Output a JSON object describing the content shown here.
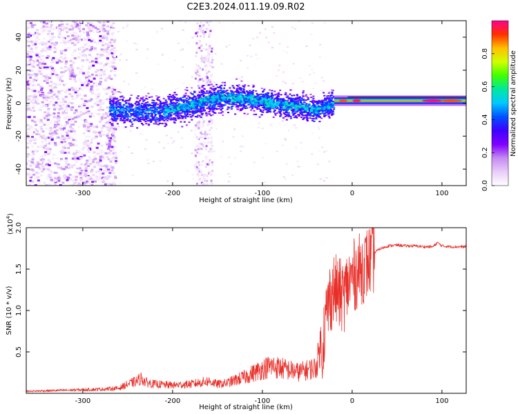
{
  "figure": {
    "title": "C2E3.2024.011.19.09.R02"
  },
  "chart_data": [
    {
      "type": "heatmap",
      "xlabel": "Height of straight line (km)",
      "ylabel": "Frequency (Hz)",
      "xlim": [
        -363,
        127
      ],
      "ylim": [
        -50,
        50
      ],
      "x_ticks": [
        -300,
        -200,
        -100,
        0,
        100
      ],
      "x_tick_labels": [
        "-300",
        "-200",
        "-100",
        "0",
        "100"
      ],
      "y_ticks": [
        -40,
        -20,
        0,
        20,
        40
      ],
      "y_tick_labels": [
        "-40",
        "-20",
        "0",
        "20",
        "40"
      ],
      "colorbar": {
        "label": "Normalized spectral amplitude",
        "range": [
          0,
          1
        ],
        "ticks": [
          0,
          0.2,
          0.4,
          0.6,
          0.8
        ],
        "tick_labels": [
          "0.0",
          "0.2",
          "0.4",
          "0.6",
          "0.8"
        ],
        "colormap": [
          "#ffffff",
          "#e8cdf8",
          "#c58bf1",
          "#7f00ff",
          "#3f00ff",
          "#0050ff",
          "#00c8ff",
          "#00e8a0",
          "#40ff00",
          "#d0ff00",
          "#ffc000",
          "#ff3000",
          "#ff0090"
        ]
      },
      "ridge": {
        "x": [
          -270,
          -240,
          -210,
          -180,
          -150,
          -120,
          -90,
          -60,
          -40,
          -20,
          0,
          40,
          80,
          127
        ],
        "y": [
          -4,
          -5,
          -5,
          -1,
          3,
          3,
          0,
          -2,
          -4,
          0,
          1.5,
          1.5,
          1.5,
          1.5
        ]
      }
    },
    {
      "type": "line",
      "xlabel": "Height of straight line (km)",
      "ylabel": "SNR (10 * v/v)",
      "y_multiplier": "(x10",
      "y_multiplier_exp": "4",
      "y_multiplier_close": ")",
      "xlim": [
        -363,
        127
      ],
      "ylim": [
        0,
        20000
      ],
      "x_ticks": [
        -300,
        -200,
        -100,
        0,
        100
      ],
      "x_tick_labels": [
        "-300",
        "-200",
        "-100",
        "0",
        "100"
      ],
      "y_ticks": [
        5000,
        10000,
        15000,
        20000
      ],
      "y_tick_labels": [
        "0.5",
        "1.0",
        "1.5",
        "2.0"
      ],
      "line_color": "#e8302a",
      "series": [
        {
          "x": [
            -363,
            -340,
            -320,
            -300,
            -280,
            -260,
            -250,
            -240,
            -235,
            -230,
            -220,
            -200,
            -180,
            -160,
            -150,
            -140,
            -130,
            -120,
            -110,
            -100,
            -90,
            -80,
            -70,
            -60,
            -50,
            -40,
            -35,
            -30,
            -25,
            -20,
            -15,
            -10,
            -5,
            0,
            5,
            10,
            15,
            20,
            25,
            30,
            40,
            50,
            60,
            70,
            80,
            90,
            95,
            100,
            110,
            120,
            127
          ],
          "y": [
            200,
            250,
            300,
            350,
            400,
            500,
            900,
            1200,
            1500,
            1100,
            900,
            800,
            900,
            1200,
            900,
            1000,
            1300,
            1600,
            2000,
            2400,
            2700,
            2500,
            2300,
            2100,
            2300,
            2600,
            5000,
            9000,
            12000,
            13000,
            12500,
            12000,
            13500,
            14500,
            15000,
            15500,
            16000,
            16500,
            17000,
            17400,
            17800,
            17900,
            17800,
            17800,
            17700,
            17700,
            18200,
            17800,
            17700,
            17700,
            17700
          ]
        }
      ]
    }
  ]
}
